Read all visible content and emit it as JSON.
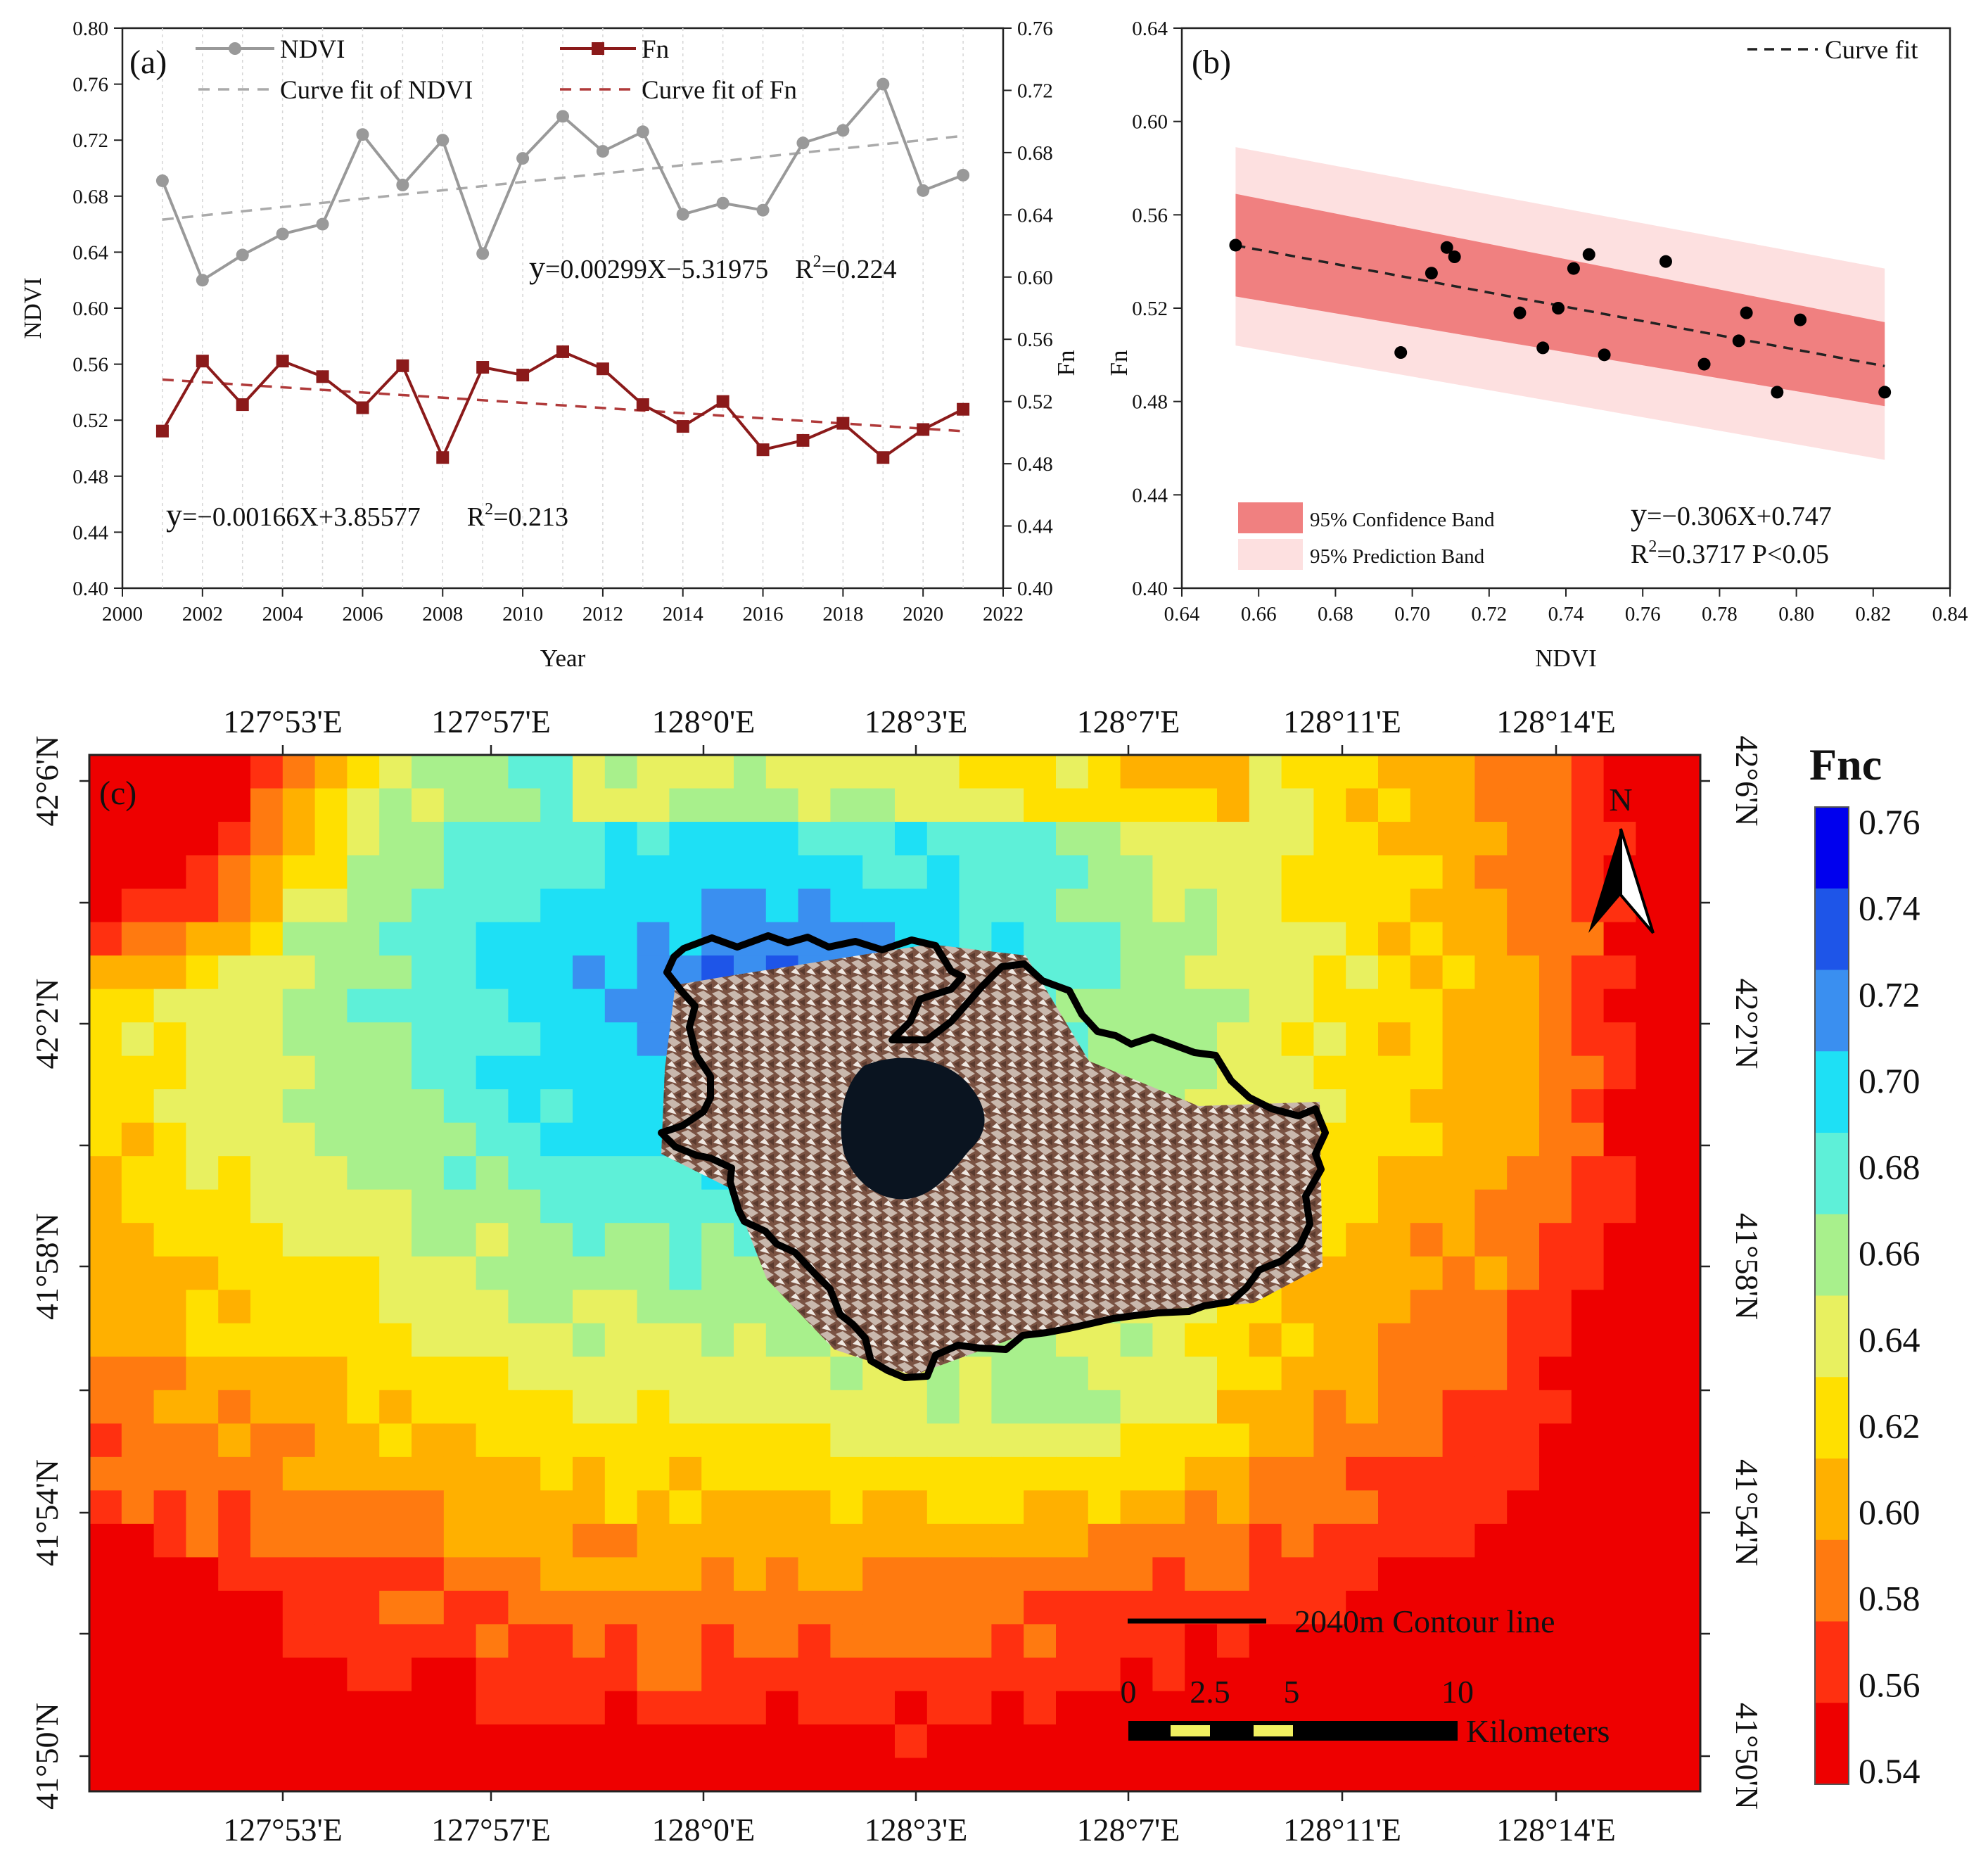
{
  "chart_data": [
    {
      "panel": "a",
      "type": "line",
      "panel_label": "(a)",
      "xlabel": "Year",
      "ylabel_left": "NDVI",
      "ylabel_right": "Fn",
      "xlim": [
        2000,
        2022
      ],
      "ylim_left": [
        0.4,
        0.8
      ],
      "ylim_right": [
        0.4,
        0.76
      ],
      "x_ticks": [
        "2000",
        "2002",
        "2004",
        "2006",
        "2008",
        "2010",
        "2012",
        "2014",
        "2016",
        "2018",
        "2020",
        "2022"
      ],
      "y_ticks_left": [
        "0.40",
        "0.44",
        "0.48",
        "0.52",
        "0.56",
        "0.60",
        "0.64",
        "0.68",
        "0.72",
        "0.76",
        "0.80"
      ],
      "y_ticks_right": [
        "0.40",
        "0.44",
        "0.48",
        "0.52",
        "0.56",
        "0.60",
        "0.64",
        "0.68",
        "0.72",
        "0.76"
      ],
      "x": [
        2001,
        2002,
        2003,
        2004,
        2005,
        2006,
        2007,
        2008,
        2009,
        2010,
        2011,
        2012,
        2013,
        2014,
        2015,
        2016,
        2017,
        2018,
        2019,
        2020,
        2021
      ],
      "series": [
        {
          "name": "NDVI",
          "axis": "left",
          "color": "#999999",
          "values": [
            0.691,
            0.62,
            0.638,
            0.653,
            0.66,
            0.724,
            0.688,
            0.72,
            0.639,
            0.707,
            0.737,
            0.712,
            0.726,
            0.667,
            0.675,
            0.67,
            0.718,
            0.727,
            0.76,
            0.684,
            0.695
          ]
        },
        {
          "name": "Fn",
          "axis": "right",
          "color": "#8b1a1a",
          "values": [
            0.501,
            0.546,
            0.518,
            0.546,
            0.536,
            0.516,
            0.543,
            0.484,
            0.542,
            0.537,
            0.552,
            0.541,
            0.518,
            0.504,
            0.52,
            0.489,
            0.495,
            0.506,
            0.484,
            0.502,
            0.515
          ]
        }
      ],
      "fits": [
        {
          "name": "Curve fit of NDVI",
          "color": "#aaaaaa",
          "axis": "left",
          "slope": 0.00299,
          "intercept": -5.31975
        },
        {
          "name": "Curve fit of Fn",
          "color": "#b03a3a",
          "axis": "right",
          "slope": -0.00166,
          "intercept": 3.85577
        }
      ],
      "legend": {
        "ndvi": "NDVI",
        "fn": "Fn",
        "ndvi_fit": "Curve fit of NDVI",
        "fn_fit": "Curve fit of Fn"
      },
      "equations": {
        "ndvi": {
          "prefix": "y",
          "body": "=0.00299X−5.31975",
          "r2_label": "R",
          "r2_sup": "2",
          "r2_value": "=0.224"
        },
        "fn": {
          "prefix": "y",
          "body": "=−0.00166X+3.85577",
          "r2_label": "R",
          "r2_sup": "2",
          "r2_value": "=0.213"
        }
      }
    },
    {
      "panel": "b",
      "type": "scatter",
      "panel_label": "(b)",
      "xlabel": "NDVI",
      "ylabel": "Fn",
      "xlim": [
        0.64,
        0.84
      ],
      "ylim": [
        0.4,
        0.64
      ],
      "x_ticks": [
        "0.64",
        "0.66",
        "0.68",
        "0.70",
        "0.72",
        "0.74",
        "0.76",
        "0.78",
        "0.80",
        "0.82",
        "0.84"
      ],
      "y_ticks": [
        "0.40",
        "0.44",
        "0.48",
        "0.52",
        "0.56",
        "0.60",
        "0.64"
      ],
      "points": [
        {
          "x": 0.654,
          "y": 0.547
        },
        {
          "x": 0.697,
          "y": 0.501
        },
        {
          "x": 0.705,
          "y": 0.535
        },
        {
          "x": 0.709,
          "y": 0.546
        },
        {
          "x": 0.711,
          "y": 0.542
        },
        {
          "x": 0.728,
          "y": 0.518
        },
        {
          "x": 0.734,
          "y": 0.503
        },
        {
          "x": 0.738,
          "y": 0.52
        },
        {
          "x": 0.742,
          "y": 0.537
        },
        {
          "x": 0.746,
          "y": 0.543
        },
        {
          "x": 0.75,
          "y": 0.5
        },
        {
          "x": 0.766,
          "y": 0.54
        },
        {
          "x": 0.776,
          "y": 0.496
        },
        {
          "x": 0.785,
          "y": 0.506
        },
        {
          "x": 0.787,
          "y": 0.518
        },
        {
          "x": 0.795,
          "y": 0.484
        },
        {
          "x": 0.801,
          "y": 0.515
        },
        {
          "x": 0.823,
          "y": 0.484
        }
      ],
      "fit": {
        "slope": -0.306,
        "intercept": 0.747,
        "x_range": [
          0.654,
          0.823
        ]
      },
      "confidence_band": {
        "x": [
          0.654,
          0.823
        ],
        "upper": [
          0.569,
          0.514
        ],
        "lower": [
          0.525,
          0.478
        ],
        "color": "#f08080"
      },
      "prediction_band": {
        "x": [
          0.654,
          0.823
        ],
        "upper": [
          0.589,
          0.537
        ],
        "lower": [
          0.504,
          0.455
        ],
        "color": "#fde0e0"
      },
      "legend": {
        "fit": "Curve fit",
        "confidence": "95% Confidence Band",
        "prediction": "95% Prediction Band"
      },
      "equation": {
        "prefix": "y",
        "body": "=−0.306X+0.747",
        "r2_label": "R",
        "r2_sup": "2",
        "r2_value": "=0.3717  P<0.05"
      }
    },
    {
      "panel": "c",
      "type": "heatmap",
      "panel_label": "(c)",
      "title": "Fnc",
      "colorbar": {
        "ticks": [
          "0.76",
          "0.74",
          "0.72",
          "0.70",
          "0.68",
          "0.66",
          "0.64",
          "0.62",
          "0.60",
          "0.58",
          "0.56",
          "0.54"
        ],
        "colors": [
          "#0000ee",
          "#1e55e8",
          "#3a8ff0",
          "#1ee0f5",
          "#5ef0d8",
          "#a8f08c",
          "#e8f060",
          "#ffe000",
          "#ffb000",
          "#ff7a10",
          "#ff3010",
          "#ee0000"
        ]
      },
      "top_ticks": [
        "127°53'E",
        "127°57'E",
        "128°0'E",
        "128°3'E",
        "128°7'E",
        "128°11'E",
        "128°14'E"
      ],
      "bottom_ticks": [
        "127°53'E",
        "127°57'E",
        "128°0'E",
        "128°3'E",
        "128°7'E",
        "128°11'E",
        "128°14'E"
      ],
      "left_ticks": [
        "42°6'N",
        "42°2'N",
        "41°58'N",
        "41°54'N",
        "41°50'N"
      ],
      "right_ticks": [
        "42°6'N",
        "42°2'N",
        "41°58'N",
        "41°54'N",
        "41°50'N"
      ],
      "north_label": "N",
      "contour_legend": "2040m Contour line",
      "scale_ticks": [
        "0",
        "2.5",
        "5",
        "10"
      ],
      "scale_unit": "Kilometers"
    }
  ]
}
